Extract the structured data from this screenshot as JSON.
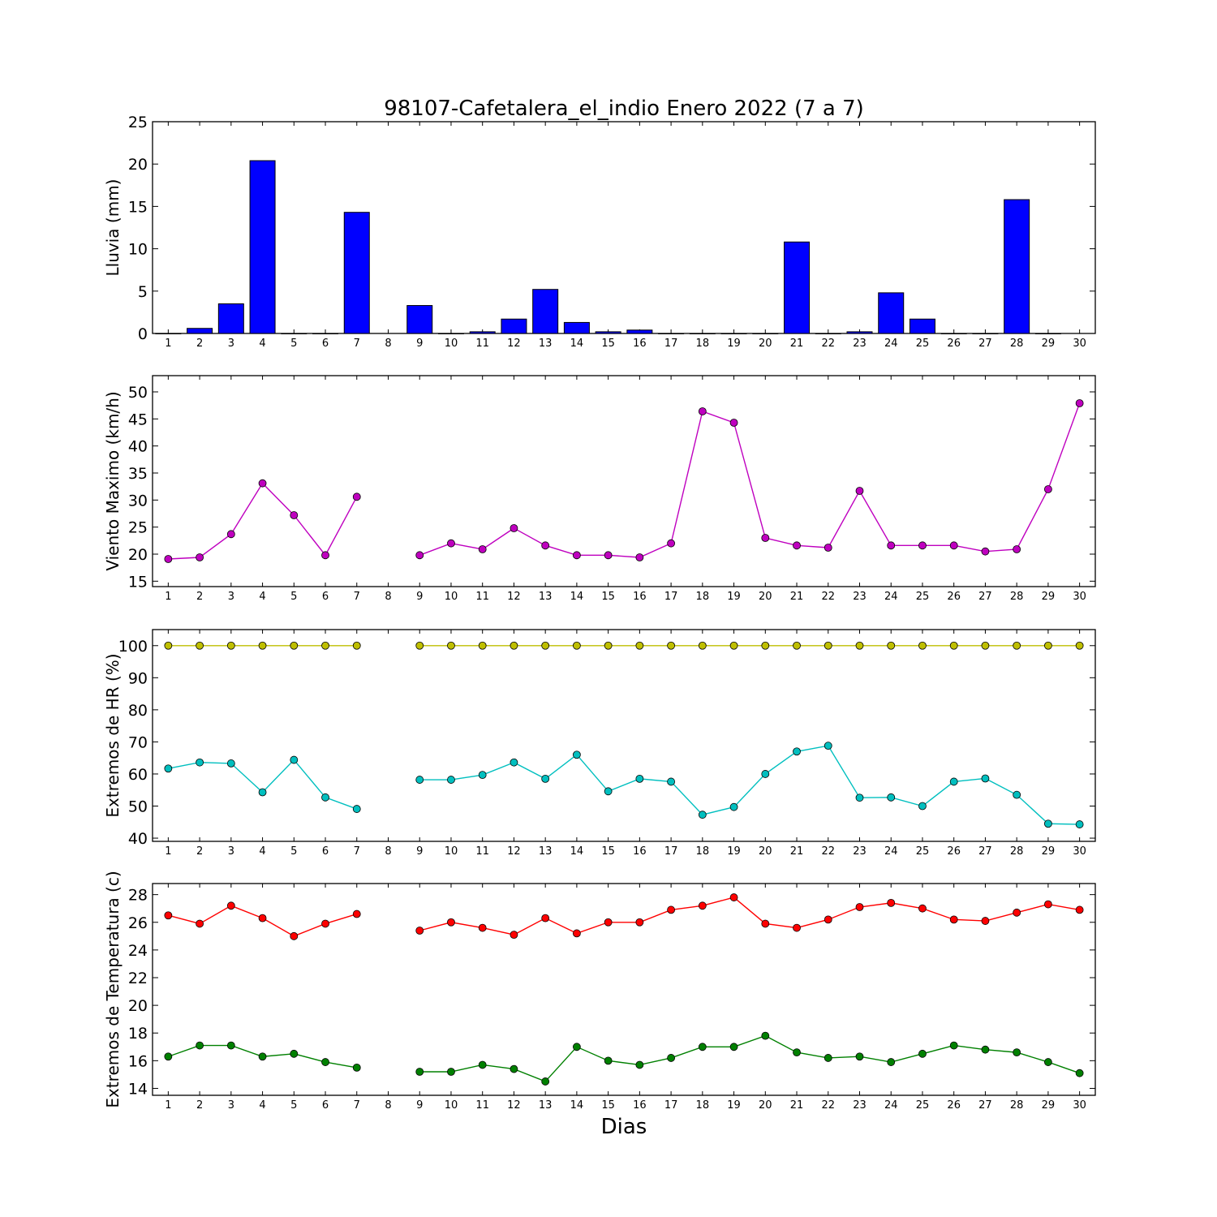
{
  "title": "98107-Cafetalera_el_indio Enero 2022  (7 a 7)",
  "xlabel": "Dias",
  "colors": {
    "bars": "#0000ff",
    "wind": "#bf00bf",
    "hr_max": "#bfbf00",
    "hr_min": "#00bfbf",
    "t_max": "#ff0000",
    "t_min": "#008000"
  },
  "chart_data": [
    {
      "type": "bar",
      "ylabel": "Lluvia (mm)",
      "x": [
        1,
        2,
        3,
        4,
        5,
        6,
        7,
        8,
        9,
        10,
        11,
        12,
        13,
        14,
        15,
        16,
        17,
        18,
        19,
        20,
        21,
        22,
        23,
        24,
        25,
        26,
        27,
        28,
        29,
        30
      ],
      "ylim": [
        0,
        25
      ],
      "yticks": [
        0,
        5,
        10,
        15,
        20,
        25
      ],
      "series": [
        {
          "values": [
            0,
            0.6,
            3.5,
            20.4,
            0,
            0,
            14.3,
            null,
            3.3,
            0,
            0.2,
            1.7,
            5.2,
            1.3,
            0.2,
            0.4,
            0,
            0,
            0,
            0,
            10.8,
            0,
            0.2,
            4.8,
            1.7,
            0,
            0,
            15.8,
            0,
            null
          ]
        }
      ]
    },
    {
      "type": "line",
      "ylabel": "Viento Maximo (km/h)",
      "x": [
        1,
        2,
        3,
        4,
        5,
        6,
        7,
        8,
        9,
        10,
        11,
        12,
        13,
        14,
        15,
        16,
        17,
        18,
        19,
        20,
        21,
        22,
        23,
        24,
        25,
        26,
        27,
        28,
        29,
        30
      ],
      "ylim": [
        14,
        53
      ],
      "yticks": [
        15,
        20,
        25,
        30,
        35,
        40,
        45,
        50
      ],
      "series": [
        {
          "values": [
            19.1,
            19.4,
            23.7,
            33.1,
            27.2,
            19.8,
            30.6,
            null,
            19.8,
            22.0,
            20.9,
            24.8,
            21.6,
            19.8,
            19.8,
            19.4,
            22.0,
            46.4,
            44.3,
            23.0,
            21.6,
            21.2,
            31.7,
            21.6,
            21.6,
            21.6,
            20.5,
            20.9,
            32.0,
            47.9
          ]
        }
      ]
    },
    {
      "type": "line",
      "ylabel": "Extremos de HR (%)",
      "x": [
        1,
        2,
        3,
        4,
        5,
        6,
        7,
        8,
        9,
        10,
        11,
        12,
        13,
        14,
        15,
        16,
        17,
        18,
        19,
        20,
        21,
        22,
        23,
        24,
        25,
        26,
        27,
        28,
        29,
        30
      ],
      "ylim": [
        39,
        105
      ],
      "yticks": [
        40,
        50,
        60,
        70,
        80,
        90,
        100
      ],
      "series": [
        {
          "values": [
            100,
            100,
            100,
            100,
            100,
            100,
            100,
            null,
            100,
            100,
            100,
            100,
            100,
            100,
            100,
            100,
            100,
            100,
            100,
            100,
            100,
            100,
            100,
            100,
            100,
            100,
            100,
            100,
            100,
            100
          ]
        },
        {
          "values": [
            61.7,
            63.6,
            63.3,
            54.3,
            64.4,
            52.7,
            49.1,
            null,
            58.2,
            58.2,
            59.7,
            63.6,
            58.5,
            66.0,
            54.6,
            58.5,
            57.6,
            47.3,
            49.7,
            60.0,
            67.0,
            68.8,
            52.6,
            52.7,
            50.0,
            57.6,
            58.6,
            53.5,
            44.5,
            44.3
          ]
        }
      ]
    },
    {
      "type": "line",
      "ylabel": "Extremos de Temperatura (c)",
      "x": [
        1,
        2,
        3,
        4,
        5,
        6,
        7,
        8,
        9,
        10,
        11,
        12,
        13,
        14,
        15,
        16,
        17,
        18,
        19,
        20,
        21,
        22,
        23,
        24,
        25,
        26,
        27,
        28,
        29,
        30
      ],
      "ylim": [
        13.5,
        28.8
      ],
      "yticks": [
        14,
        16,
        18,
        20,
        22,
        24,
        26,
        28
      ],
      "series": [
        {
          "values": [
            26.5,
            25.9,
            27.2,
            26.3,
            25.0,
            25.9,
            26.6,
            null,
            25.4,
            26.0,
            25.6,
            25.1,
            26.3,
            25.2,
            26.0,
            26.0,
            26.9,
            27.2,
            27.8,
            25.9,
            25.6,
            26.2,
            27.1,
            27.4,
            27.0,
            26.2,
            26.1,
            26.7,
            27.3,
            26.9
          ]
        },
        {
          "values": [
            16.3,
            17.1,
            17.1,
            16.3,
            16.5,
            15.9,
            15.5,
            null,
            15.2,
            15.2,
            15.7,
            15.4,
            14.5,
            17.0,
            16.0,
            15.7,
            16.2,
            17.0,
            17.0,
            17.8,
            16.6,
            16.2,
            16.3,
            15.9,
            16.5,
            17.1,
            16.8,
            16.6,
            15.9,
            15.1
          ]
        }
      ]
    }
  ]
}
